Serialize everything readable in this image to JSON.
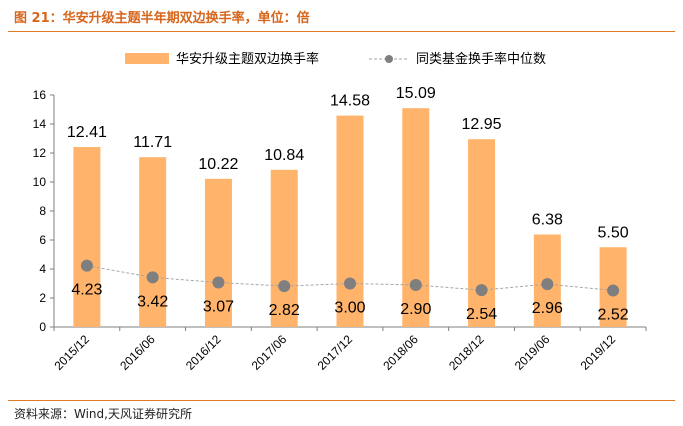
{
  "figure": {
    "title": "图 21：华安升级主题半年期双边换手率，单位：倍",
    "source": "资料来源：Wind,天风证券研究所"
  },
  "colors": {
    "bar": "#ffb36b",
    "line": "#a6a6a6",
    "marker": "#7f7f7f",
    "rule": "#e07b24",
    "title": "#d6661c"
  },
  "chart_data": {
    "type": "bar",
    "categories": [
      "2015/12",
      "2016/06",
      "2016/12",
      "2017/06",
      "2017/12",
      "2018/06",
      "2018/12",
      "2019/06",
      "2019/12"
    ],
    "series": [
      {
        "name": "华安升级主题双边换手率",
        "type": "bar",
        "values": [
          12.41,
          11.71,
          10.22,
          10.84,
          14.58,
          15.09,
          12.95,
          6.38,
          5.5
        ],
        "labels": [
          "12.41",
          "11.71",
          "10.22",
          "10.84",
          "14.58",
          "15.09",
          "12.95",
          "6.38",
          "5.50"
        ]
      },
      {
        "name": "同类基金换手率中位数",
        "type": "line",
        "values": [
          4.23,
          3.42,
          3.07,
          2.82,
          3.0,
          2.9,
          2.54,
          2.96,
          2.52
        ],
        "labels": [
          "4.23",
          "3.42",
          "3.07",
          "2.82",
          "3.00",
          "2.90",
          "2.54",
          "2.96",
          "2.52"
        ]
      }
    ],
    "ylim": [
      0,
      16
    ],
    "yticks": [
      "0",
      "2",
      "4",
      "6",
      "8",
      "10",
      "12",
      "14",
      "16"
    ],
    "xlabel": "",
    "ylabel": "",
    "grid": false,
    "legend_position": "top-center"
  }
}
